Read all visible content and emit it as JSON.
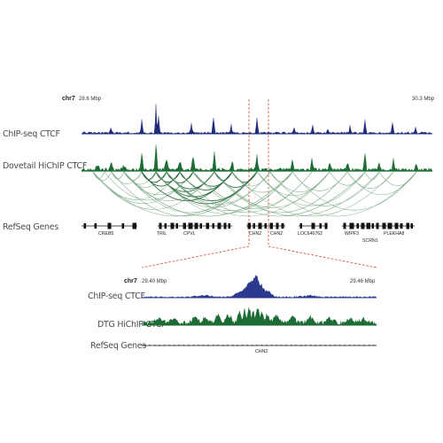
{
  "top_view": {
    "chrom": "chr7",
    "start": "28.6 Mbp",
    "end": "30.3 Mbp",
    "track_labels": [
      "ChIP-seq CTCF",
      "Dovetail HiChIP CTCF",
      "RefSeq Genes"
    ],
    "genes": [
      "CREB5",
      "TRIL",
      "CPVL",
      "CHN2",
      "CHN2",
      "LOC646762",
      "WIPF3",
      "SCRN1",
      "PLEKHA8"
    ]
  },
  "zoom_view": {
    "chrom": "chr7",
    "start": "29.40 Mbp",
    "end": "29.46 Mbp",
    "track_labels": [
      "ChIP-seq CTCF",
      "DTG HiChIP CTCF",
      "RefSeq Genes"
    ],
    "genes": [
      "CHN2"
    ]
  },
  "colors": {
    "chip": "#1f2a7a",
    "chip_zoom": "#2b3a8c",
    "hichip": "#1d6b35",
    "arc": "#4f8e60",
    "zoom_guides": "#d43a2a",
    "gene": "#111111"
  }
}
